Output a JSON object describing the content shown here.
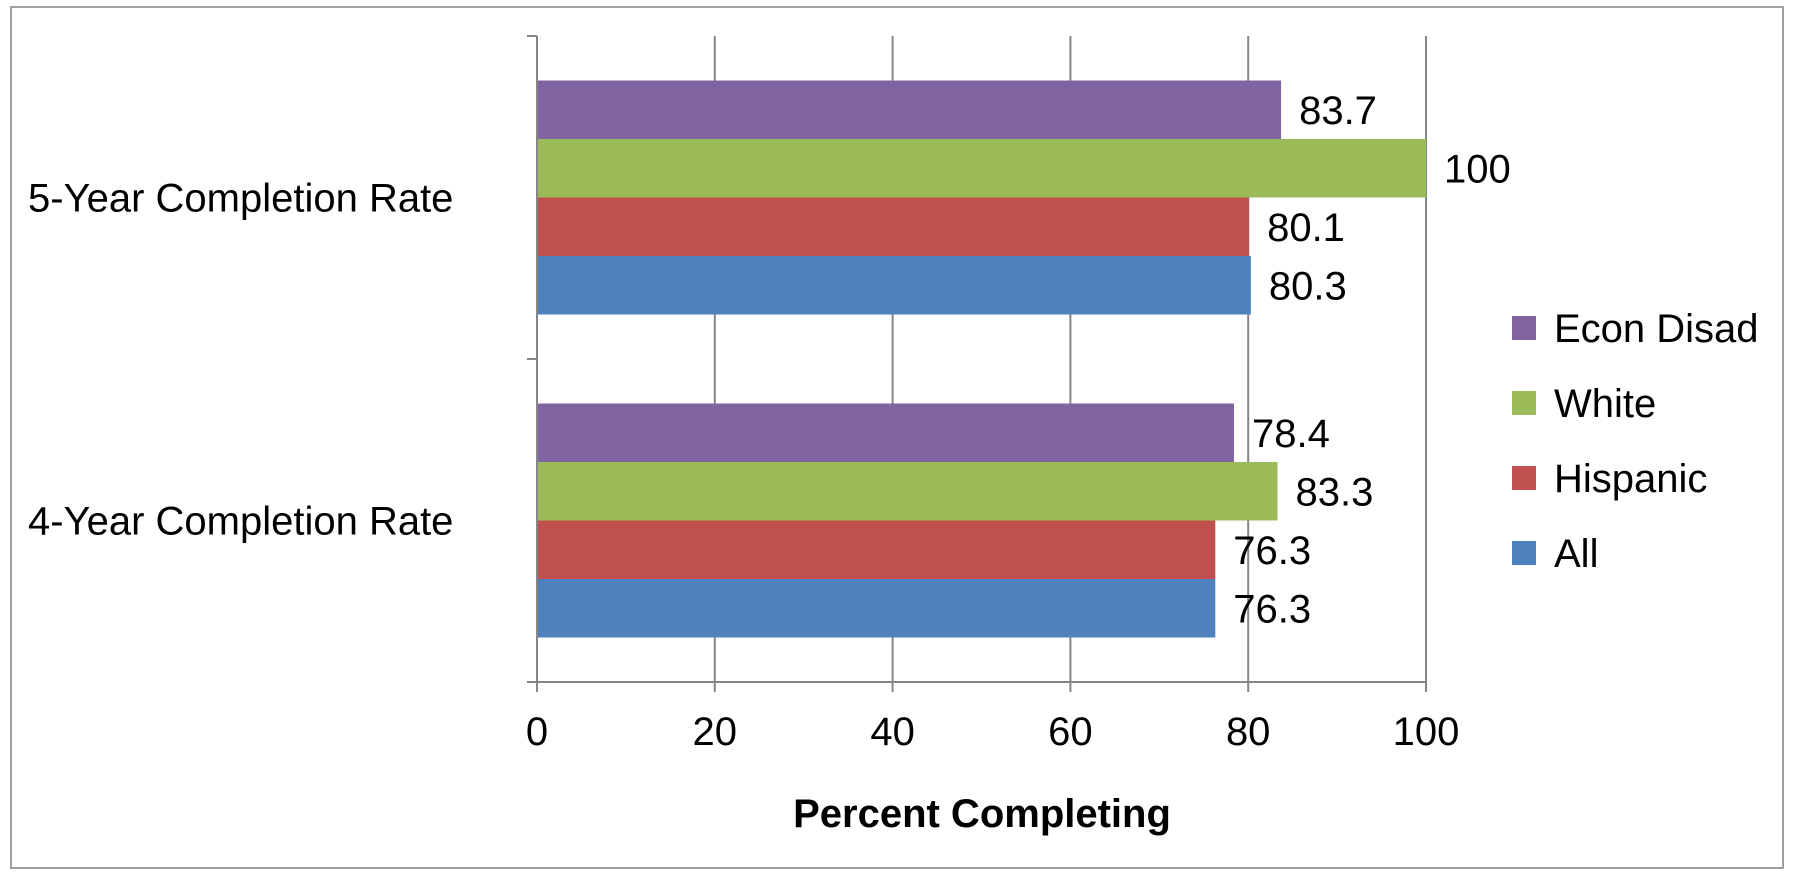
{
  "chart_data": {
    "type": "bar",
    "orientation": "horizontal",
    "categories": [
      "4-Year Completion Rate",
      "5-Year Completion Rate"
    ],
    "series": [
      {
        "name": "All",
        "color": "#4F81BD",
        "values": [
          76.3,
          80.3
        ]
      },
      {
        "name": "Hispanic",
        "color": "#C0504D",
        "values": [
          76.3,
          80.1
        ]
      },
      {
        "name": "White",
        "color": "#9BBB59",
        "values": [
          83.3,
          100
        ]
      },
      {
        "name": "Econ Disad",
        "color": "#8064A2",
        "values": [
          78.4,
          83.7
        ]
      }
    ],
    "data_labels": {
      "All": [
        "76.3",
        "80.3"
      ],
      "Hispanic": [
        "76.3",
        "80.1"
      ],
      "White": [
        "83.3",
        "100"
      ],
      "Econ Disad": [
        "78.4",
        "83.7"
      ]
    },
    "xlabel": "Percent Completing",
    "ylabel": "",
    "xlim": [
      0,
      100
    ],
    "xticks": [
      "0",
      "20",
      "40",
      "60",
      "80",
      "100"
    ],
    "grid": true,
    "legend_position": "right",
    "legend_order": [
      "Econ Disad",
      "White",
      "Hispanic",
      "All"
    ]
  }
}
